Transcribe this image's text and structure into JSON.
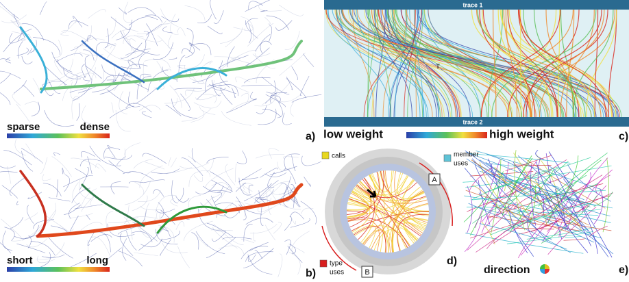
{
  "map_density": {
    "low_label": "sparse",
    "high_label": "dense"
  },
  "map_length": {
    "low_label": "short",
    "high_label": "long"
  },
  "panel_labels": [
    "a)",
    "b)",
    "c)",
    "d)",
    "e)"
  ],
  "traces": {
    "top": "trace 1",
    "bottom": "trace 2",
    "marker": "T",
    "low_label": "low weight",
    "high_label": "high weight"
  },
  "radial": {
    "calls": "calls",
    "member": [
      "member",
      "uses"
    ],
    "type": [
      "type",
      "uses"
    ],
    "box_a": "A",
    "box_b": "B"
  },
  "direction": {
    "label": "direction"
  }
}
